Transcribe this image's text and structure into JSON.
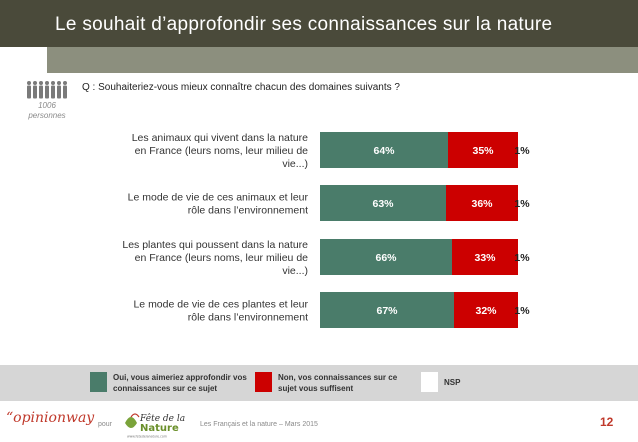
{
  "header": {
    "title": "Le souhait d’approfondir ses connaissances sur la nature"
  },
  "respondents": {
    "count": "1006",
    "unit": "personnes"
  },
  "question": "Q : Souhaiteriez-vous mieux connaître chacun des domaines suivants ?",
  "chart_data": {
    "type": "bar",
    "orientation": "horizontal",
    "stacked": true,
    "categories": [
      [
        "Les animaux qui vivent dans la nature",
        "en France (leurs noms, leur milieu de",
        "vie...)"
      ],
      [
        "Le mode de vie de ces animaux et leur",
        "rôle dans l’environnement"
      ],
      [
        "Les plantes qui poussent dans la nature",
        "en France (leurs noms, leur milieu de",
        "vie...)"
      ],
      [
        "Le mode de vie de ces plantes et leur",
        "rôle dans l’environnement"
      ]
    ],
    "series": [
      {
        "name": "Oui, vous aimeriez approfondir vos connaissances sur ce sujet",
        "color": "#4a7c6a",
        "values": [
          64,
          63,
          66,
          67
        ]
      },
      {
        "name": "Non, vos connaissances sur ce sujet vous suffisent",
        "color": "#cc0000",
        "values": [
          35,
          36,
          33,
          32
        ]
      },
      {
        "name": "NSP",
        "color": "#ffffff",
        "values": [
          1,
          1,
          1,
          1
        ]
      }
    ],
    "value_suffix": "%",
    "xlim": [
      0,
      100
    ],
    "grid": false,
    "legend_position": "bottom"
  },
  "legend": {
    "items": [
      {
        "label": "Oui, vous aimeriez approfondir vos connaissances sur ce sujet",
        "color": "#4a7c6a"
      },
      {
        "label": "Non, vos connaissances sur ce sujet vous suffisent",
        "color": "#cc0000"
      },
      {
        "label": "NSP",
        "color": "#ffffff"
      }
    ]
  },
  "footer": {
    "logo_text": "“opinionway",
    "pour": "pour",
    "partner_logo": "Fête de la Nature",
    "partner_url": "www.fetedelanature.com",
    "source": "Les Français et la nature – Mars 2015",
    "page_number": "12"
  }
}
